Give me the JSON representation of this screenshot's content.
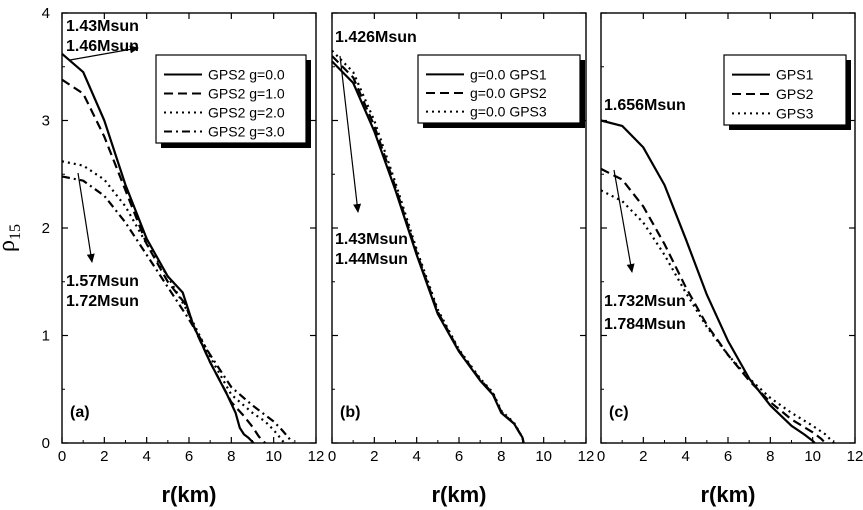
{
  "y_label": "ρ",
  "y_label_sub": "15",
  "chart_data": [
    {
      "type": "line",
      "panel_label": "(a)",
      "xlabel": "r(km)",
      "xlim": [
        0,
        12
      ],
      "ylim": [
        0,
        4
      ],
      "xticks": [
        0,
        2,
        4,
        6,
        8,
        10,
        12
      ],
      "yticks": [
        0,
        1,
        2,
        3,
        4
      ],
      "legend": "top-right",
      "series": [
        {
          "name": "GPS2 g=0.0",
          "dash": "solid",
          "x": [
            0,
            1,
            2,
            3,
            4,
            5,
            5.7,
            6.2,
            7,
            7.8,
            8.2,
            8.4,
            8.6,
            8.8,
            9.05
          ],
          "y": [
            3.62,
            3.45,
            3.0,
            2.4,
            1.9,
            1.55,
            1.4,
            1.1,
            0.75,
            0.45,
            0.28,
            0.14,
            0.08,
            0.05,
            0
          ]
        },
        {
          "name": "GPS2 g=1.0",
          "dash": "dashed",
          "x": [
            0,
            1,
            2,
            3,
            4,
            5,
            5.8,
            6.3,
            7,
            8,
            8.6,
            9,
            9.3,
            9.6
          ],
          "y": [
            3.38,
            3.25,
            2.85,
            2.35,
            1.85,
            1.5,
            1.3,
            1.05,
            0.75,
            0.38,
            0.25,
            0.15,
            0.06,
            0
          ]
        },
        {
          "name": "GPS2 g=2.0",
          "dash": "dotted",
          "x": [
            0,
            1,
            2,
            3,
            4,
            5,
            6,
            7,
            8,
            9,
            9.6,
            10,
            10.3,
            10.5
          ],
          "y": [
            2.62,
            2.58,
            2.45,
            2.2,
            1.85,
            1.55,
            1.2,
            0.8,
            0.45,
            0.28,
            0.2,
            0.12,
            0.05,
            0
          ]
        },
        {
          "name": "GPS2 g=3.0",
          "dash": "dashdot",
          "x": [
            0,
            1,
            2,
            3,
            4,
            5,
            6,
            7,
            8,
            9,
            10,
            10.4,
            10.7,
            10.9
          ],
          "y": [
            2.48,
            2.44,
            2.3,
            2.05,
            1.75,
            1.45,
            1.15,
            0.82,
            0.52,
            0.35,
            0.2,
            0.12,
            0.05,
            0
          ]
        }
      ],
      "annotations": [
        {
          "text": "1.43Msun"
        },
        {
          "text": "1.46Msun"
        },
        {
          "text": "1.57Msun"
        },
        {
          "text": "1.72Msun"
        }
      ]
    },
    {
      "type": "line",
      "panel_label": "(b)",
      "xlabel": "r(km)",
      "xlim": [
        0,
        12
      ],
      "ylim": [
        0,
        4
      ],
      "xticks": [
        0,
        2,
        4,
        6,
        8,
        10,
        12
      ],
      "yticks": [
        0,
        1,
        2,
        3,
        4
      ],
      "legend": "top-right",
      "series": [
        {
          "name": "g=0.0  GPS1",
          "dash": "solid",
          "x": [
            0,
            1,
            2,
            3,
            4,
            5,
            6,
            7,
            7.6,
            8,
            8.6,
            9,
            9.05
          ],
          "y": [
            3.55,
            3.35,
            2.9,
            2.35,
            1.75,
            1.2,
            0.85,
            0.58,
            0.45,
            0.28,
            0.18,
            0.05,
            0
          ]
        },
        {
          "name": "g=0.0  GPS2",
          "dash": "dashed",
          "x": [
            0,
            1,
            2,
            3,
            4,
            5,
            6,
            7,
            7.6,
            8,
            8.6,
            9,
            9.05
          ],
          "y": [
            3.6,
            3.4,
            2.95,
            2.38,
            1.77,
            1.22,
            0.86,
            0.59,
            0.46,
            0.29,
            0.18,
            0.05,
            0
          ]
        },
        {
          "name": "g=0.0  GPS3",
          "dash": "dotted",
          "x": [
            0,
            1,
            2,
            3,
            4,
            5,
            6,
            7,
            7.6,
            8,
            8.6,
            9,
            9.05
          ],
          "y": [
            3.65,
            3.45,
            3.0,
            2.42,
            1.8,
            1.24,
            0.87,
            0.6,
            0.47,
            0.3,
            0.19,
            0.05,
            0
          ]
        }
      ],
      "annotations": [
        {
          "text": "1.426Msun"
        },
        {
          "text": "1.43Msun"
        },
        {
          "text": "1.44Msun"
        }
      ]
    },
    {
      "type": "line",
      "panel_label": "(c)",
      "xlabel": "r(km)",
      "xlim": [
        0,
        12
      ],
      "ylim": [
        0,
        4
      ],
      "xticks": [
        0,
        2,
        4,
        6,
        8,
        10,
        12
      ],
      "yticks": [
        0,
        1,
        2,
        3,
        4
      ],
      "legend": "top-right",
      "series": [
        {
          "name": "GPS1",
          "dash": "solid",
          "x": [
            0,
            1,
            2,
            3,
            4,
            5,
            6,
            7,
            8,
            9,
            9.6,
            10,
            10.1
          ],
          "y": [
            3.0,
            2.95,
            2.75,
            2.4,
            1.9,
            1.38,
            0.95,
            0.6,
            0.35,
            0.16,
            0.08,
            0.02,
            0
          ]
        },
        {
          "name": "GPS2",
          "dash": "dashed",
          "x": [
            0,
            1,
            2,
            3,
            4,
            5,
            6,
            7,
            8,
            9,
            10,
            10.4,
            10.6
          ],
          "y": [
            2.55,
            2.45,
            2.2,
            1.85,
            1.45,
            1.1,
            0.82,
            0.58,
            0.38,
            0.22,
            0.1,
            0.04,
            0
          ]
        },
        {
          "name": "GPS3",
          "dash": "dotted",
          "x": [
            0,
            1,
            2,
            3,
            4,
            5,
            6,
            7,
            8,
            9,
            10,
            10.6,
            11.0
          ],
          "y": [
            2.35,
            2.25,
            2.05,
            1.75,
            1.4,
            1.08,
            0.82,
            0.6,
            0.42,
            0.28,
            0.16,
            0.08,
            0
          ]
        }
      ],
      "annotations": [
        {
          "text": "1.656Msun"
        },
        {
          "text": "1.732Msun"
        },
        {
          "text": "1.784Msun"
        }
      ]
    }
  ]
}
